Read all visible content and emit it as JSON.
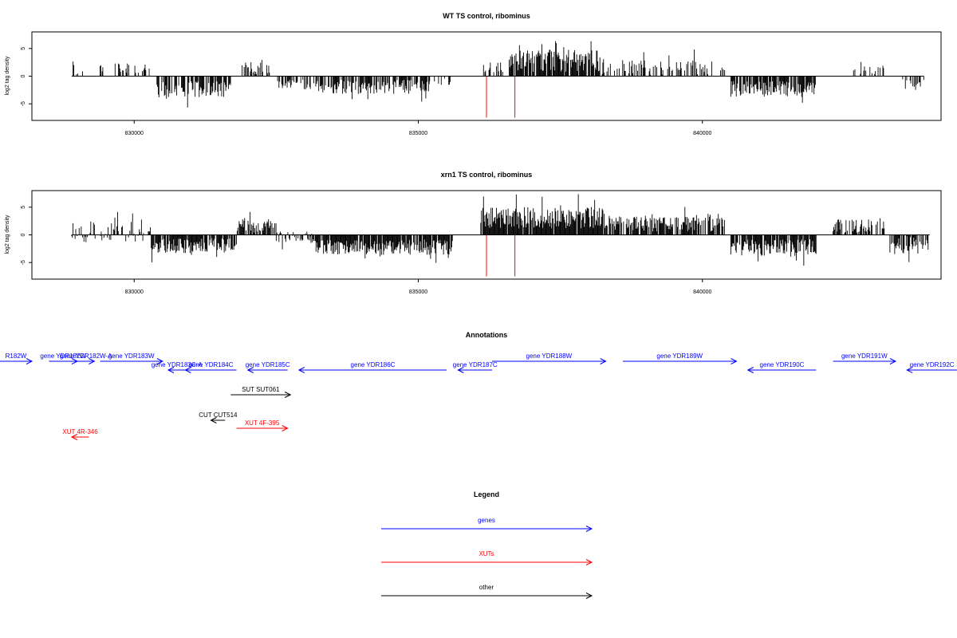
{
  "chart_data": [
    {
      "type": "bar",
      "title": "WT TS control, ribominus",
      "ylabel": "log2 tag density",
      "xlabel": "",
      "xlim": [
        828200,
        844200
      ],
      "ylim": [
        -8,
        8
      ],
      "x_ticks": [
        830000,
        835000,
        840000
      ],
      "y_ticks": [
        -5,
        0,
        5
      ],
      "grid": false,
      "markers": [
        836200,
        836700
      ],
      "series": [
        {
          "segments": [
            {
              "start": 828900,
              "end": 829200,
              "mean": 1.0,
              "amp": 1.2,
              "density": 0.35,
              "seed": 1
            },
            {
              "start": 829200,
              "end": 829400,
              "mean": -1.5,
              "amp": 0.8,
              "density": 0.12,
              "seed": 2
            },
            {
              "start": 829400,
              "end": 830300,
              "mean": 1.4,
              "amp": 1.0,
              "density": 0.25,
              "seed": 3
            },
            {
              "start": 830400,
              "end": 831700,
              "mean": -2.4,
              "amp": 1.5,
              "density": 0.7,
              "seed": 4
            },
            {
              "start": 831900,
              "end": 832400,
              "mean": 1.5,
              "amp": 1.2,
              "density": 0.5,
              "seed": 5
            },
            {
              "start": 832500,
              "end": 833200,
              "mean": -1.5,
              "amp": 0.9,
              "density": 0.45,
              "seed": 6
            },
            {
              "start": 833200,
              "end": 835200,
              "mean": -1.9,
              "amp": 1.3,
              "density": 0.7,
              "seed": 7
            },
            {
              "start": 835200,
              "end": 835700,
              "mean": -1.0,
              "amp": 0.7,
              "density": 0.25,
              "seed": 8
            },
            {
              "start": 836100,
              "end": 836500,
              "mean": 1.5,
              "amp": 1.0,
              "density": 0.4,
              "seed": 9
            },
            {
              "start": 836600,
              "end": 838200,
              "mean": 2.8,
              "amp": 2.0,
              "density": 0.9,
              "seed": 10
            },
            {
              "start": 838200,
              "end": 839900,
              "mean": 1.6,
              "amp": 1.5,
              "density": 0.45,
              "seed": 11
            },
            {
              "start": 839900,
              "end": 840400,
              "mean": 1.3,
              "amp": 1.2,
              "density": 0.3,
              "seed": 12
            },
            {
              "start": 840500,
              "end": 842000,
              "mean": -2.3,
              "amp": 1.4,
              "density": 0.75,
              "seed": 13
            },
            {
              "start": 842600,
              "end": 843200,
              "mean": 1.0,
              "amp": 0.9,
              "density": 0.3,
              "seed": 14
            },
            {
              "start": 843500,
              "end": 843900,
              "mean": -1.4,
              "amp": 1.0,
              "density": 0.4,
              "seed": 15
            }
          ]
        }
      ]
    },
    {
      "type": "bar",
      "title": "xrn1 TS control, ribominus",
      "ylabel": "log2 tag density",
      "xlabel": "",
      "xlim": [
        828200,
        844200
      ],
      "ylim": [
        -8,
        8
      ],
      "x_ticks": [
        830000,
        835000,
        840000
      ],
      "y_ticks": [
        -5,
        0,
        5
      ],
      "grid": false,
      "markers": [
        836200,
        836700
      ],
      "series": [
        {
          "segments": [
            {
              "start": 828900,
              "end": 829300,
              "mean": 0.5,
              "amp": 2.2,
              "density": 0.6,
              "seed": 21
            },
            {
              "start": 829300,
              "end": 830300,
              "mean": 0.6,
              "amp": 1.8,
              "density": 0.5,
              "seed": 22
            },
            {
              "start": 830300,
              "end": 831800,
              "mean": -1.9,
              "amp": 1.4,
              "density": 0.85,
              "seed": 23
            },
            {
              "start": 831800,
              "end": 832500,
              "mean": 1.6,
              "amp": 1.5,
              "density": 0.8,
              "seed": 24
            },
            {
              "start": 832500,
              "end": 833200,
              "mean": -0.6,
              "amp": 1.2,
              "density": 0.5,
              "seed": 25
            },
            {
              "start": 833200,
              "end": 835600,
              "mean": -2.2,
              "amp": 1.4,
              "density": 0.9,
              "seed": 26
            },
            {
              "start": 836100,
              "end": 838300,
              "mean": 3.1,
              "amp": 2.0,
              "density": 0.95,
              "seed": 27
            },
            {
              "start": 838300,
              "end": 840400,
              "mean": 2.2,
              "amp": 1.6,
              "density": 0.8,
              "seed": 28
            },
            {
              "start": 840500,
              "end": 842000,
              "mean": -2.3,
              "amp": 1.5,
              "density": 0.9,
              "seed": 29
            },
            {
              "start": 842300,
              "end": 843200,
              "mean": 1.6,
              "amp": 1.3,
              "density": 0.6,
              "seed": 30
            },
            {
              "start": 843300,
              "end": 844000,
              "mean": -1.8,
              "amp": 1.6,
              "density": 0.65,
              "seed": 31
            }
          ]
        }
      ]
    }
  ],
  "annotations": {
    "title": "Annotations",
    "xlim": [
      828200,
      844200
    ],
    "items": [
      {
        "label": "R182W",
        "start": 827600,
        "end": 828200,
        "strand": "+",
        "color": "#0000ff",
        "row": 0
      },
      {
        "label": "gene YDR182W",
        "start": 828500,
        "end": 829000,
        "strand": "+",
        "color": "#0000ff",
        "row": 0
      },
      {
        "label": "gene YDR182W-A",
        "start": 829000,
        "end": 829300,
        "strand": "+",
        "color": "#0000ff",
        "row": 0
      },
      {
        "label": "gene YDR183W",
        "start": 829400,
        "end": 830500,
        "strand": "+",
        "color": "#0000ff",
        "row": 0
      },
      {
        "label": "gene YDR183C-A",
        "start": 830600,
        "end": 830900,
        "strand": "-",
        "color": "#0000ff",
        "row": 1
      },
      {
        "label": "gene YDR184C",
        "start": 830900,
        "end": 831800,
        "strand": "-",
        "color": "#0000ff",
        "row": 1
      },
      {
        "label": "gene YDR185C",
        "start": 832000,
        "end": 832700,
        "strand": "-",
        "color": "#0000ff",
        "row": 1
      },
      {
        "label": "gene YDR186C",
        "start": 832900,
        "end": 835500,
        "strand": "-",
        "color": "#0000ff",
        "row": 1
      },
      {
        "label": "gene YDR187C",
        "start": 835700,
        "end": 836300,
        "strand": "-",
        "color": "#0000ff",
        "row": 1
      },
      {
        "label": "gene YDR188W",
        "start": 836300,
        "end": 838300,
        "strand": "+",
        "color": "#0000ff",
        "row": 0
      },
      {
        "label": "gene YDR189W",
        "start": 838600,
        "end": 840600,
        "strand": "+",
        "color": "#0000ff",
        "row": 0
      },
      {
        "label": "gene YDR190C",
        "start": 840800,
        "end": 842000,
        "strand": "-",
        "color": "#0000ff",
        "row": 1
      },
      {
        "label": "gene YDR191W",
        "start": 842300,
        "end": 843400,
        "strand": "+",
        "color": "#0000ff",
        "row": 0
      },
      {
        "label": "gene YDR192C",
        "start": 843600,
        "end": 844600,
        "strand": "-",
        "color": "#0000ff",
        "row": 1
      },
      {
        "label": "SUT SUT061",
        "start": 831700,
        "end": 832750,
        "strand": "+",
        "color": "#000000",
        "row": 2
      },
      {
        "label": "CUT CUT514",
        "start": 831350,
        "end": 831600,
        "strand": "-",
        "color": "#000000",
        "row": 3
      },
      {
        "label": "XUT 4F-395",
        "start": 831800,
        "end": 832700,
        "strand": "+",
        "color": "#ff0000",
        "row": 4
      },
      {
        "label": "XUT 4R-346",
        "start": 828900,
        "end": 829200,
        "strand": "-",
        "color": "#ff0000",
        "row": 5
      }
    ]
  },
  "legend": {
    "title": "Legend",
    "items": [
      {
        "label": "genes",
        "color": "#0000ff"
      },
      {
        "label": "XUTs",
        "color": "#ff0000"
      },
      {
        "label": "other",
        "color": "#000000"
      }
    ]
  }
}
